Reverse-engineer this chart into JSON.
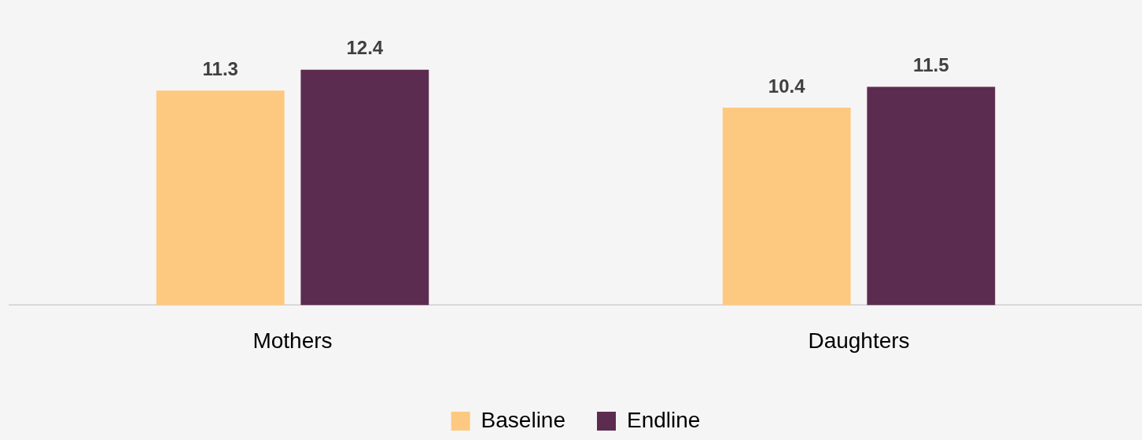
{
  "chart_data": {
    "type": "bar",
    "categories": [
      "Mothers",
      "Daughters"
    ],
    "series": [
      {
        "name": "Baseline",
        "color": "#fdc981",
        "values": [
          11.3,
          10.4
        ]
      },
      {
        "name": "Endline",
        "color": "#5c2c50",
        "values": [
          12.4,
          11.5
        ]
      }
    ],
    "data_labels": true,
    "grid": false,
    "legend": "bottom",
    "tick_labels": "x"
  }
}
